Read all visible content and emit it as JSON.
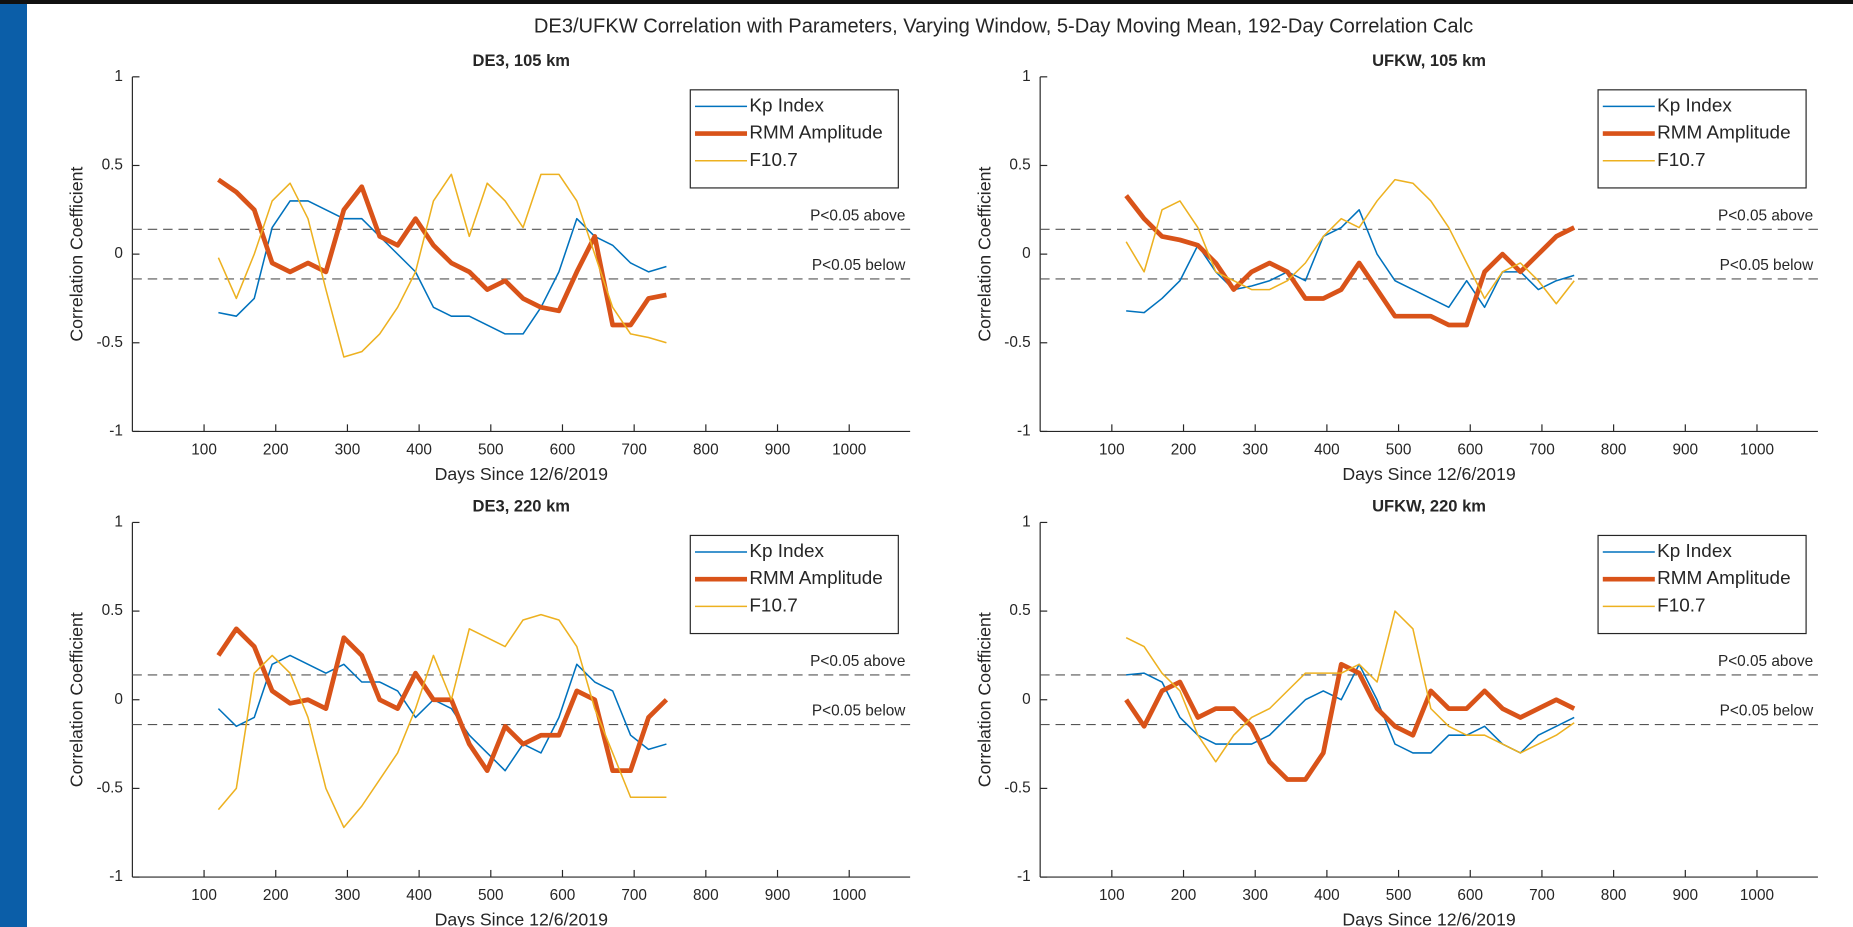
{
  "title": "DE3/UFKW Correlation with Parameters, Varying Window, 5-Day Moving Mean, 192-Day Correlation Calc",
  "chart_data": [
    {
      "type": "line",
      "title": "DE3, 105 km",
      "x_label": "Days Since 12/6/2019",
      "y_label": "Correlation Coefficient",
      "xlim": [
        0,
        1085
      ],
      "xticks": [
        100,
        200,
        300,
        400,
        500,
        600,
        700,
        800,
        900,
        1000
      ],
      "ylim": [
        -1,
        1
      ],
      "yticks": [
        -1,
        -0.5,
        0,
        0.5,
        1
      ],
      "legend": "northeast",
      "thresholds": [
        {
          "value": 0.14,
          "label": "P<0.05 above"
        },
        {
          "value": -0.14,
          "label": "P<0.05 below"
        }
      ],
      "x": [
        120,
        145,
        170,
        195,
        220,
        245,
        270,
        295,
        320,
        345,
        370,
        395,
        420,
        445,
        470,
        495,
        520,
        545,
        570,
        595,
        620,
        645,
        670,
        695,
        720,
        745
      ],
      "series": [
        {
          "name": "Kp Index",
          "color": "#0072bd",
          "line_width": 1.3,
          "values": [
            -0.33,
            -0.35,
            -0.25,
            0.15,
            0.3,
            0.3,
            0.25,
            0.2,
            0.2,
            0.1,
            0.0,
            -0.1,
            -0.3,
            -0.35,
            -0.35,
            -0.4,
            -0.45,
            -0.45,
            -0.3,
            -0.1,
            0.2,
            0.1,
            0.05,
            -0.05,
            -0.1,
            -0.07
          ]
        },
        {
          "name": "RMM Amplitude",
          "color": "#d95319",
          "line_width": 4,
          "values": [
            0.42,
            0.35,
            0.25,
            -0.05,
            -0.1,
            -0.05,
            -0.1,
            0.25,
            0.38,
            0.1,
            0.05,
            0.2,
            0.05,
            -0.05,
            -0.1,
            -0.2,
            -0.15,
            -0.25,
            -0.3,
            -0.32,
            -0.1,
            0.1,
            -0.4,
            -0.4,
            -0.25,
            -0.23
          ]
        },
        {
          "name": "F10.7",
          "color": "#edb120",
          "line_width": 1.3,
          "values": [
            -0.02,
            -0.25,
            0.0,
            0.3,
            0.4,
            0.2,
            -0.2,
            -0.58,
            -0.55,
            -0.45,
            -0.3,
            -0.1,
            0.3,
            0.45,
            0.1,
            0.4,
            0.3,
            0.15,
            0.45,
            0.45,
            0.3,
            0.0,
            -0.3,
            -0.45,
            -0.47,
            -0.5
          ]
        }
      ]
    },
    {
      "type": "line",
      "title": "UFKW, 105 km",
      "x_label": "Days Since 12/6/2019",
      "y_label": "Correlation Coefficient",
      "xlim": [
        0,
        1085
      ],
      "xticks": [
        100,
        200,
        300,
        400,
        500,
        600,
        700,
        800,
        900,
        1000
      ],
      "ylim": [
        -1,
        1
      ],
      "yticks": [
        -1,
        -0.5,
        0,
        0.5,
        1
      ],
      "legend": "northeast",
      "thresholds": [
        {
          "value": 0.14,
          "label": "P<0.05 above"
        },
        {
          "value": -0.14,
          "label": "P<0.05 below"
        }
      ],
      "x": [
        120,
        145,
        170,
        195,
        220,
        245,
        270,
        295,
        320,
        345,
        370,
        395,
        420,
        445,
        470,
        495,
        520,
        545,
        570,
        595,
        620,
        645,
        670,
        695,
        720,
        745
      ],
      "series": [
        {
          "name": "Kp Index",
          "color": "#0072bd",
          "line_width": 1.3,
          "values": [
            -0.32,
            -0.33,
            -0.25,
            -0.15,
            0.05,
            -0.1,
            -0.2,
            -0.18,
            -0.15,
            -0.1,
            -0.15,
            0.1,
            0.15,
            0.25,
            0.0,
            -0.15,
            -0.2,
            -0.25,
            -0.3,
            -0.15,
            -0.3,
            -0.1,
            -0.1,
            -0.2,
            -0.15,
            -0.12
          ]
        },
        {
          "name": "RMM Amplitude",
          "color": "#d95319",
          "line_width": 4,
          "values": [
            0.33,
            0.2,
            0.1,
            0.08,
            0.05,
            -0.05,
            -0.2,
            -0.1,
            -0.05,
            -0.1,
            -0.25,
            -0.25,
            -0.2,
            -0.05,
            -0.2,
            -0.35,
            -0.35,
            -0.35,
            -0.4,
            -0.4,
            -0.1,
            0.0,
            -0.1,
            0.0,
            0.1,
            0.15
          ]
        },
        {
          "name": "F10.7",
          "color": "#edb120",
          "line_width": 1.3,
          "values": [
            0.07,
            -0.1,
            0.25,
            0.3,
            0.15,
            -0.1,
            -0.15,
            -0.2,
            -0.2,
            -0.15,
            -0.05,
            0.1,
            0.2,
            0.15,
            0.3,
            0.42,
            0.4,
            0.3,
            0.15,
            -0.05,
            -0.25,
            -0.1,
            -0.05,
            -0.15,
            -0.28,
            -0.15
          ]
        }
      ]
    },
    {
      "type": "line",
      "title": "DE3, 220 km",
      "x_label": "Days Since 12/6/2019",
      "y_label": "Correlation Coefficient",
      "xlim": [
        0,
        1085
      ],
      "xticks": [
        100,
        200,
        300,
        400,
        500,
        600,
        700,
        800,
        900,
        1000
      ],
      "ylim": [
        -1,
        1
      ],
      "yticks": [
        -1,
        -0.5,
        0,
        0.5,
        1
      ],
      "legend": "northeast",
      "thresholds": [
        {
          "value": 0.14,
          "label": "P<0.05 above"
        },
        {
          "value": -0.14,
          "label": "P<0.05 below"
        }
      ],
      "x": [
        120,
        145,
        170,
        195,
        220,
        245,
        270,
        295,
        320,
        345,
        370,
        395,
        420,
        445,
        470,
        495,
        520,
        545,
        570,
        595,
        620,
        645,
        670,
        695,
        720,
        745
      ],
      "series": [
        {
          "name": "Kp Index",
          "color": "#0072bd",
          "line_width": 1.3,
          "values": [
            -0.05,
            -0.15,
            -0.1,
            0.2,
            0.25,
            0.2,
            0.15,
            0.2,
            0.1,
            0.1,
            0.05,
            -0.1,
            0.0,
            -0.05,
            -0.2,
            -0.3,
            -0.4,
            -0.25,
            -0.3,
            -0.1,
            0.2,
            0.1,
            0.05,
            -0.2,
            -0.28,
            -0.25
          ]
        },
        {
          "name": "RMM Amplitude",
          "color": "#d95319",
          "line_width": 4,
          "values": [
            0.25,
            0.4,
            0.3,
            0.05,
            -0.02,
            0.0,
            -0.05,
            0.35,
            0.25,
            0.0,
            -0.05,
            0.15,
            0.0,
            0.0,
            -0.25,
            -0.4,
            -0.15,
            -0.25,
            -0.2,
            -0.2,
            0.05,
            0.0,
            -0.4,
            -0.4,
            -0.1,
            0.0
          ]
        },
        {
          "name": "F10.7",
          "color": "#edb120",
          "line_width": 1.3,
          "values": [
            -0.62,
            -0.5,
            0.15,
            0.25,
            0.15,
            -0.1,
            -0.5,
            -0.72,
            -0.6,
            -0.45,
            -0.3,
            -0.05,
            0.25,
            0.0,
            0.4,
            0.35,
            0.3,
            0.45,
            0.48,
            0.45,
            0.3,
            -0.05,
            -0.3,
            -0.55,
            -0.55,
            -0.55
          ]
        }
      ]
    },
    {
      "type": "line",
      "title": "UFKW, 220 km",
      "x_label": "Days Since 12/6/2019",
      "y_label": "Correlation Coefficient",
      "xlim": [
        0,
        1085
      ],
      "xticks": [
        100,
        200,
        300,
        400,
        500,
        600,
        700,
        800,
        900,
        1000
      ],
      "ylim": [
        -1,
        1
      ],
      "yticks": [
        -1,
        -0.5,
        0,
        0.5,
        1
      ],
      "legend": "northeast",
      "thresholds": [
        {
          "value": 0.14,
          "label": "P<0.05 above"
        },
        {
          "value": -0.14,
          "label": "P<0.05 below"
        }
      ],
      "x": [
        120,
        145,
        170,
        195,
        220,
        245,
        270,
        295,
        320,
        345,
        370,
        395,
        420,
        445,
        470,
        495,
        520,
        545,
        570,
        595,
        620,
        645,
        670,
        695,
        720,
        745
      ],
      "series": [
        {
          "name": "Kp Index",
          "color": "#0072bd",
          "line_width": 1.3,
          "values": [
            0.14,
            0.15,
            0.1,
            -0.1,
            -0.2,
            -0.25,
            -0.25,
            -0.25,
            -0.2,
            -0.1,
            0.0,
            0.05,
            0.0,
            0.2,
            0.0,
            -0.25,
            -0.3,
            -0.3,
            -0.2,
            -0.2,
            -0.15,
            -0.25,
            -0.3,
            -0.2,
            -0.15,
            -0.1
          ]
        },
        {
          "name": "RMM Amplitude",
          "color": "#d95319",
          "line_width": 4,
          "values": [
            0.0,
            -0.15,
            0.05,
            0.1,
            -0.1,
            -0.05,
            -0.05,
            -0.15,
            -0.35,
            -0.45,
            -0.45,
            -0.3,
            0.2,
            0.15,
            -0.05,
            -0.15,
            -0.2,
            0.05,
            -0.05,
            -0.05,
            0.05,
            -0.05,
            -0.1,
            -0.05,
            0.0,
            -0.05
          ]
        },
        {
          "name": "F10.7",
          "color": "#edb120",
          "line_width": 1.3,
          "values": [
            0.35,
            0.3,
            0.15,
            0.05,
            -0.2,
            -0.35,
            -0.2,
            -0.1,
            -0.05,
            0.05,
            0.15,
            0.15,
            0.15,
            0.2,
            0.1,
            0.5,
            0.4,
            -0.05,
            -0.15,
            -0.2,
            -0.2,
            -0.25,
            -0.3,
            -0.25,
            -0.2,
            -0.13
          ]
        }
      ]
    }
  ]
}
